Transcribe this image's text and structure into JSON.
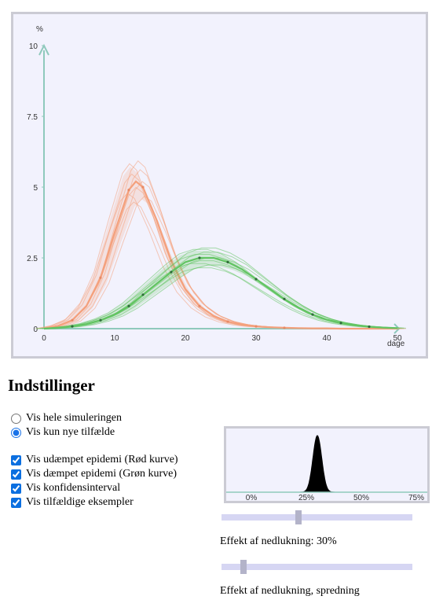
{
  "chart_data": [
    {
      "type": "line",
      "title": "",
      "ylabel": "%",
      "xlabel": "dage",
      "xlim": [
        0,
        50
      ],
      "ylim": [
        0,
        10
      ],
      "x_ticks": [
        "0",
        "10",
        "20",
        "30",
        "40",
        "50"
      ],
      "y_ticks": [
        "0",
        "2.5",
        "5",
        "7.5",
        "10"
      ],
      "grid": false,
      "x": [
        0,
        2,
        4,
        6,
        8,
        10,
        12,
        13,
        14,
        16,
        18,
        20,
        22,
        24,
        26,
        28,
        30,
        32,
        34,
        36,
        38,
        40,
        42,
        44,
        46,
        48,
        50
      ],
      "series": [
        {
          "color": "#f4a07c",
          "values": [
            0,
            0.1,
            0.3,
            0.8,
            1.8,
            3.4,
            4.9,
            5.2,
            5.0,
            3.8,
            2.4,
            1.4,
            0.8,
            0.45,
            0.25,
            0.14,
            0.08,
            0.05,
            0.03,
            0.02,
            0.01,
            0.01,
            0,
            0,
            0,
            0,
            0
          ]
        },
        {
          "color": "#62c462",
          "values": [
            0,
            0.03,
            0.08,
            0.16,
            0.3,
            0.5,
            0.8,
            1.0,
            1.2,
            1.6,
            2.0,
            2.35,
            2.5,
            2.5,
            2.35,
            2.1,
            1.75,
            1.4,
            1.05,
            0.75,
            0.5,
            0.32,
            0.2,
            0.12,
            0.07,
            0.04,
            0.02
          ]
        }
      ],
      "color_unmitigated": "#f4a07c",
      "color_mitigated": "#62c462"
    },
    {
      "type": "area",
      "title": "",
      "xlim": [
        -0.1,
        0.8
      ],
      "x_ticks": [
        "0%",
        "25%",
        "50%",
        "75%"
      ],
      "peak_center": 0.3,
      "peak_spread": 0.02,
      "color": "#000000"
    }
  ],
  "settings": {
    "heading": "Indstillinger",
    "radio_full": "Vis hele simuleringen",
    "radio_new": "Vis kun nye tilfælde",
    "check_unmitigated": "Vis udæmpet epidemi (Rød kurve)",
    "check_mitigated": "Vis dæmpet epidemi (Grøn kurve)",
    "check_confidence": "Vis konfidensinterval",
    "check_examples": "Vis tilfældige eksempler",
    "radio_full_checked": false,
    "radio_new_checked": true,
    "checks_checked": [
      true,
      true,
      true,
      true
    ]
  },
  "sliders": {
    "effect_label": "Effekt af nedlukning: 30%",
    "effect_value": 0.4,
    "spread_label": "Effekt af nedlukning, spredning",
    "spread_value": 0.1
  }
}
